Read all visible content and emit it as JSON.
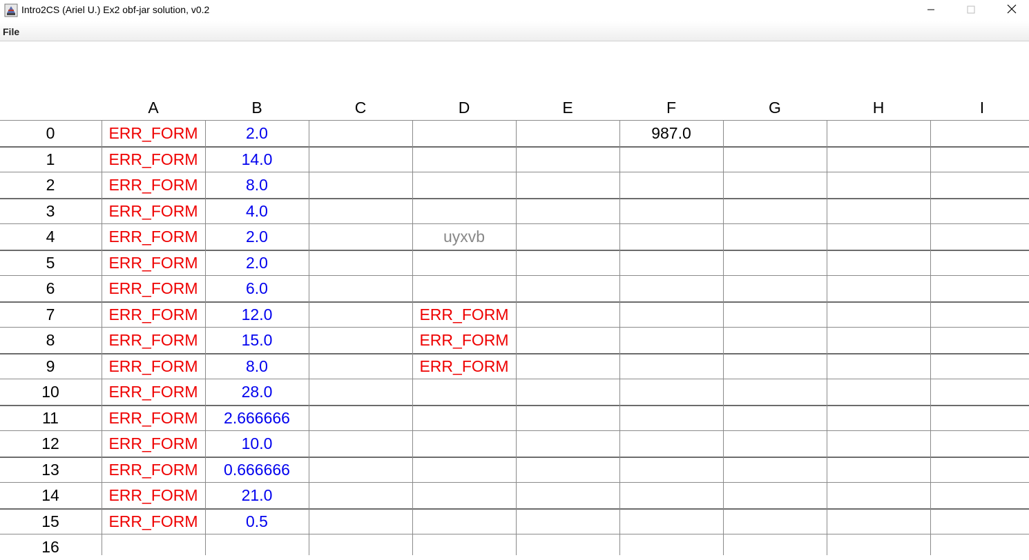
{
  "window": {
    "title": "Intro2CS (Ariel U.) Ex2 obf-jar solution, v0.2",
    "icon": "java-cup-icon",
    "controls": [
      "minimize-icon",
      "maximize-icon",
      "close-icon"
    ]
  },
  "menu": {
    "file_label": "File"
  },
  "sheet": {
    "columns": [
      "A",
      "B",
      "C",
      "D",
      "E",
      "F",
      "G",
      "H",
      "I"
    ],
    "rows": [
      "0",
      "1",
      "2",
      "3",
      "4",
      "5",
      "6",
      "7",
      "8",
      "9",
      "10",
      "11",
      "12",
      "13",
      "14",
      "15",
      "16"
    ],
    "colors": {
      "number": "#0000ee",
      "error": "#ee0000",
      "text": "#888888",
      "plain": "#000000"
    },
    "cells": [
      {
        "col": 0,
        "row": 0,
        "value": "ERR_FORM",
        "kind": "err"
      },
      {
        "col": 0,
        "row": 1,
        "value": "ERR_FORM",
        "kind": "err"
      },
      {
        "col": 0,
        "row": 2,
        "value": "ERR_FORM",
        "kind": "err"
      },
      {
        "col": 0,
        "row": 3,
        "value": "ERR_FORM",
        "kind": "err"
      },
      {
        "col": 0,
        "row": 4,
        "value": "ERR_FORM",
        "kind": "err"
      },
      {
        "col": 0,
        "row": 5,
        "value": "ERR_FORM",
        "kind": "err"
      },
      {
        "col": 0,
        "row": 6,
        "value": "ERR_FORM",
        "kind": "err"
      },
      {
        "col": 0,
        "row": 7,
        "value": "ERR_FORM",
        "kind": "err"
      },
      {
        "col": 0,
        "row": 8,
        "value": "ERR_FORM",
        "kind": "err"
      },
      {
        "col": 0,
        "row": 9,
        "value": "ERR_FORM",
        "kind": "err"
      },
      {
        "col": 0,
        "row": 10,
        "value": "ERR_FORM",
        "kind": "err"
      },
      {
        "col": 0,
        "row": 11,
        "value": "ERR_FORM",
        "kind": "err"
      },
      {
        "col": 0,
        "row": 12,
        "value": "ERR_FORM",
        "kind": "err"
      },
      {
        "col": 0,
        "row": 13,
        "value": "ERR_FORM",
        "kind": "err"
      },
      {
        "col": 0,
        "row": 14,
        "value": "ERR_FORM",
        "kind": "err"
      },
      {
        "col": 0,
        "row": 15,
        "value": "ERR_FORM",
        "kind": "err"
      },
      {
        "col": 1,
        "row": 0,
        "value": "2.0",
        "kind": "num"
      },
      {
        "col": 1,
        "row": 1,
        "value": "14.0",
        "kind": "num"
      },
      {
        "col": 1,
        "row": 2,
        "value": "8.0",
        "kind": "num"
      },
      {
        "col": 1,
        "row": 3,
        "value": "4.0",
        "kind": "num"
      },
      {
        "col": 1,
        "row": 4,
        "value": "2.0",
        "kind": "num"
      },
      {
        "col": 1,
        "row": 5,
        "value": "2.0",
        "kind": "num"
      },
      {
        "col": 1,
        "row": 6,
        "value": "6.0",
        "kind": "num"
      },
      {
        "col": 1,
        "row": 7,
        "value": "12.0",
        "kind": "num"
      },
      {
        "col": 1,
        "row": 8,
        "value": "15.0",
        "kind": "num"
      },
      {
        "col": 1,
        "row": 9,
        "value": "8.0",
        "kind": "num"
      },
      {
        "col": 1,
        "row": 10,
        "value": "28.0",
        "kind": "num"
      },
      {
        "col": 1,
        "row": 11,
        "value": "2.666666",
        "kind": "num"
      },
      {
        "col": 1,
        "row": 12,
        "value": "10.0",
        "kind": "num"
      },
      {
        "col": 1,
        "row": 13,
        "value": "0.666666",
        "kind": "num"
      },
      {
        "col": 1,
        "row": 14,
        "value": "21.0",
        "kind": "num"
      },
      {
        "col": 1,
        "row": 15,
        "value": "0.5",
        "kind": "num"
      },
      {
        "col": 3,
        "row": 4,
        "value": "uyxvb",
        "kind": "text"
      },
      {
        "col": 3,
        "row": 7,
        "value": "ERR_FORM",
        "kind": "err"
      },
      {
        "col": 3,
        "row": 8,
        "value": "ERR_FORM",
        "kind": "err"
      },
      {
        "col": 3,
        "row": 9,
        "value": "ERR_FORM",
        "kind": "err"
      },
      {
        "col": 5,
        "row": 0,
        "value": "987.0",
        "kind": "plain"
      }
    ]
  }
}
